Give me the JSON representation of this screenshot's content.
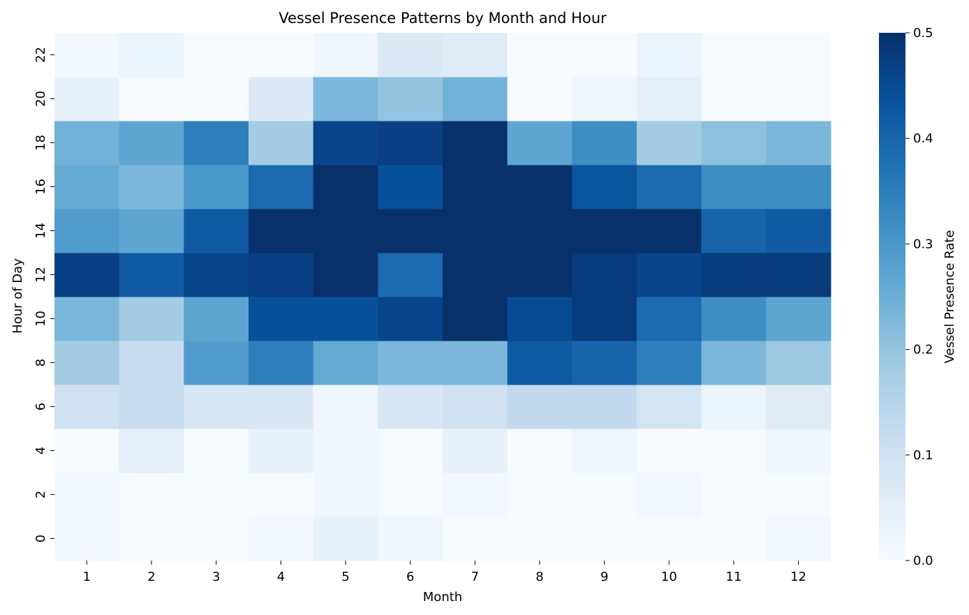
{
  "chart_data": {
    "type": "heatmap",
    "title": "Vessel Presence Patterns by Month and Hour",
    "xlabel": "Month",
    "ylabel": "Hour of Day",
    "colorbar_label": "Vessel Presence Rate",
    "colormap": "Blues",
    "color_range": [
      0.0,
      0.5
    ],
    "colorbar_ticks": [
      "0.0",
      "0.1",
      "0.2",
      "0.3",
      "0.4",
      "0.5"
    ],
    "x_categories": [
      "1",
      "2",
      "3",
      "4",
      "5",
      "6",
      "7",
      "8",
      "9",
      "10",
      "11",
      "12"
    ],
    "y_categories": [
      "0",
      "2",
      "4",
      "6",
      "8",
      "10",
      "12",
      "14",
      "16",
      "18",
      "20",
      "22"
    ],
    "values": [
      [
        0.01,
        0.0,
        0.0,
        0.01,
        0.04,
        0.02,
        0.0,
        0.0,
        0.0,
        0.0,
        0.0,
        0.01
      ],
      [
        0.01,
        0.0,
        0.0,
        0.0,
        0.02,
        0.0,
        0.01,
        0.0,
        0.0,
        0.01,
        0.0,
        0.0
      ],
      [
        0.0,
        0.05,
        0.0,
        0.04,
        0.02,
        0.0,
        0.04,
        0.0,
        0.02,
        0.0,
        0.0,
        0.02
      ],
      [
        0.1,
        0.12,
        0.08,
        0.08,
        0.02,
        0.08,
        0.1,
        0.13,
        0.13,
        0.09,
        0.03,
        0.06
      ],
      [
        0.18,
        0.12,
        0.29,
        0.35,
        0.26,
        0.23,
        0.23,
        0.42,
        0.4,
        0.35,
        0.23,
        0.19
      ],
      [
        0.23,
        0.18,
        0.27,
        0.44,
        0.44,
        0.46,
        0.5,
        0.45,
        0.48,
        0.39,
        0.32,
        0.27
      ],
      [
        0.47,
        0.42,
        0.46,
        0.47,
        0.5,
        0.39,
        0.5,
        0.5,
        0.48,
        0.46,
        0.48,
        0.48
      ],
      [
        0.29,
        0.27,
        0.42,
        0.5,
        0.5,
        0.5,
        0.5,
        0.5,
        0.5,
        0.5,
        0.4,
        0.42
      ],
      [
        0.26,
        0.23,
        0.3,
        0.39,
        0.5,
        0.44,
        0.5,
        0.5,
        0.43,
        0.39,
        0.32,
        0.32
      ],
      [
        0.24,
        0.27,
        0.35,
        0.18,
        0.46,
        0.47,
        0.5,
        0.27,
        0.32,
        0.18,
        0.21,
        0.23
      ],
      [
        0.04,
        0.0,
        0.0,
        0.07,
        0.23,
        0.2,
        0.24,
        0.0,
        0.02,
        0.05,
        0.0,
        0.0
      ],
      [
        0.01,
        0.03,
        0.0,
        0.0,
        0.02,
        0.07,
        0.06,
        0.0,
        0.0,
        0.03,
        0.0,
        0.0
      ]
    ]
  }
}
